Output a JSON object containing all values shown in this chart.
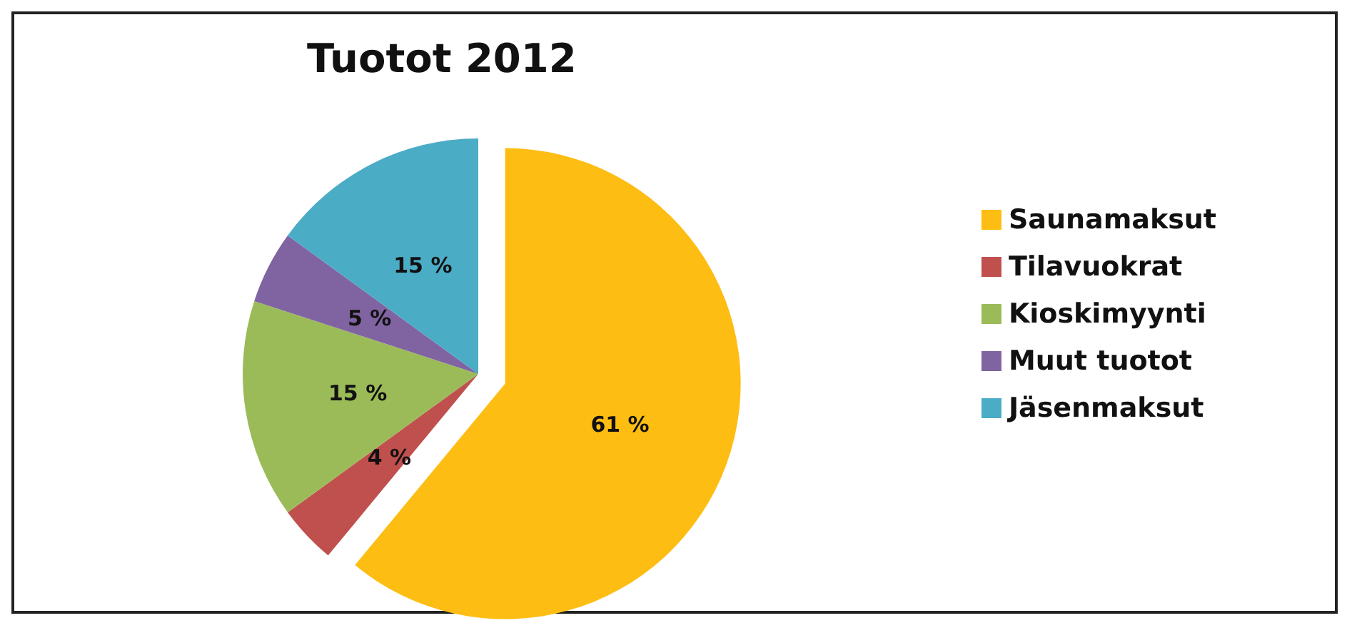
{
  "chart_data": {
    "type": "pie",
    "title": "Tuotot 2012",
    "categories": [
      "Saunamaksut",
      "Tilavuokrat",
      "Kioskimyynti",
      "Muut tuotot",
      "Jäsenmaksut"
    ],
    "values": [
      61,
      4,
      15,
      5,
      15
    ],
    "colors": [
      "#fdbd12",
      "#c0504d",
      "#9bbb59",
      "#8064a2",
      "#4bacc6"
    ],
    "value_labels": [
      "61 %",
      "4 %",
      "15 %",
      "5 %",
      "15 %"
    ],
    "legend": "right"
  }
}
